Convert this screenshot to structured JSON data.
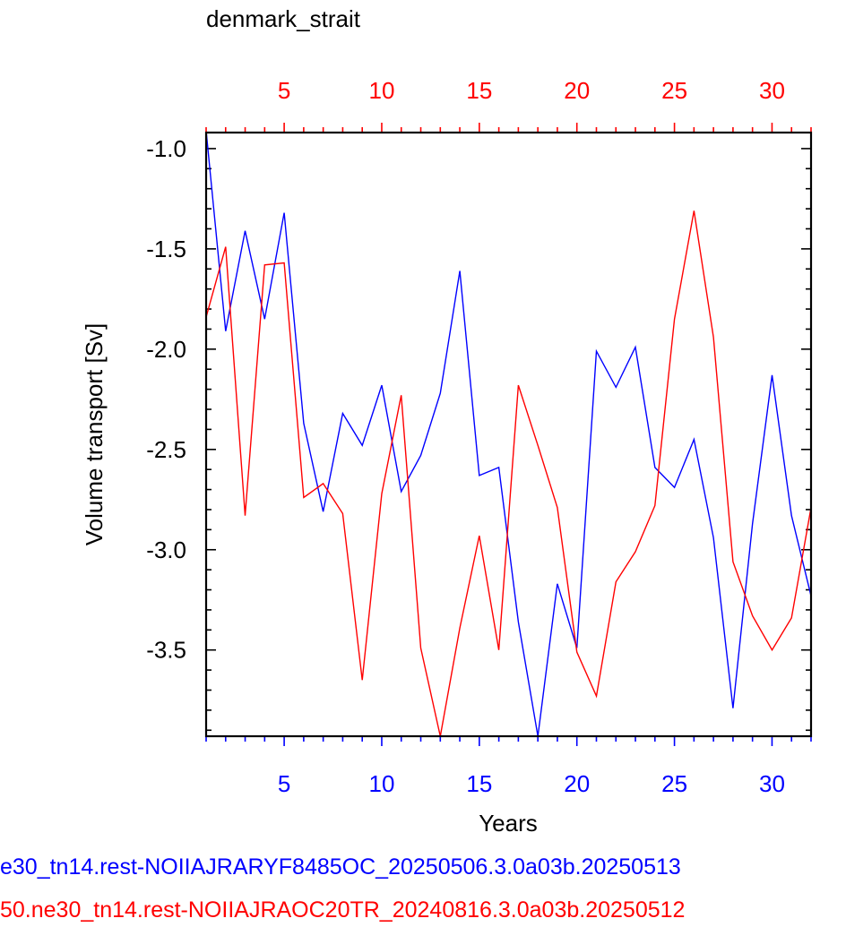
{
  "chart_data": {
    "type": "line",
    "title": "denmark_strait",
    "xlabel": "Years",
    "ylabel": "Volume transport [Sv]",
    "xlim": [
      1,
      32
    ],
    "ylim": [
      -3.93,
      -0.92
    ],
    "x_ticks": [
      5,
      10,
      15,
      20,
      25,
      30
    ],
    "y_ticks": [
      -1.0,
      -1.5,
      -2.0,
      -2.5,
      -3.0,
      -3.5
    ],
    "y_tick_labels": [
      "-1.0",
      "-1.5",
      "-2.0",
      "-2.5",
      "-3.0",
      "-3.5"
    ],
    "bottom_axis_color": "#0000ff",
    "top_axis_color": "#ff0000",
    "x": [
      1,
      2,
      3,
      4,
      5,
      6,
      7,
      8,
      9,
      10,
      11,
      12,
      13,
      14,
      15,
      16,
      17,
      18,
      19,
      20,
      21,
      22,
      23,
      24,
      25,
      26,
      27,
      28,
      29,
      30,
      31,
      32
    ],
    "series": [
      {
        "color": "#0000ff",
        "values": [
          -0.91,
          -1.91,
          -1.41,
          -1.85,
          -1.32,
          -2.37,
          -2.81,
          -2.32,
          -2.48,
          -2.18,
          -2.71,
          -2.53,
          -2.22,
          -1.61,
          -2.63,
          -2.59,
          -3.36,
          -3.93,
          -3.17,
          -3.49,
          -2.01,
          -2.19,
          -1.99,
          -2.59,
          -2.69,
          -2.45,
          -2.94,
          -3.79,
          -2.87,
          -2.13,
          -2.83,
          -3.23
        ]
      },
      {
        "color": "#ff0000",
        "values": [
          -1.84,
          -1.49,
          -2.83,
          -1.58,
          -1.57,
          -2.74,
          -2.67,
          -2.82,
          -3.65,
          -2.72,
          -2.23,
          -3.49,
          -3.93,
          -3.39,
          -2.93,
          -3.5,
          -2.18,
          -2.48,
          -2.79,
          -3.51,
          -3.73,
          -3.16,
          -3.01,
          -2.78,
          -1.85,
          -1.31,
          -1.94,
          -3.06,
          -3.33,
          -3.5,
          -3.34,
          -2.79
        ]
      }
    ],
    "captions": [
      {
        "text": "e30_tn14.rest-NOIIAJRARYF8485OC_20250506.3.0a03b.20250513",
        "color": "#0000ff"
      },
      {
        "text": "50.ne30_tn14.rest-NOIIAJRAOC20TR_20240816.3.0a03b.20250512",
        "color": "#ff0000"
      }
    ]
  }
}
